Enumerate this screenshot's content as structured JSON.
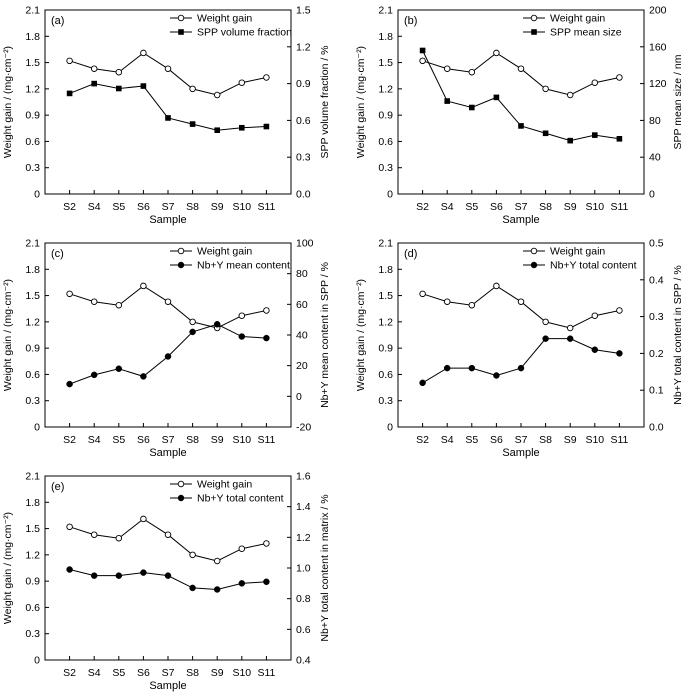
{
  "chart_data": [
    {
      "type": "line",
      "panel_label": "(a)",
      "xlabel": "Sample",
      "ylabel": "Weight gain / (mg·cm⁻²)",
      "ylabel_right": "SPP volume fraction / %",
      "categories": [
        "S2",
        "S4",
        "S5",
        "S6",
        "S7",
        "S8",
        "S9",
        "S10",
        "S11"
      ],
      "ylim": [
        0,
        2.1
      ],
      "yticks": [
        "0",
        "0.3",
        "0.6",
        "0.9",
        "1.2",
        "1.5",
        "1.8",
        "2.1"
      ],
      "ylim_right": [
        0,
        1.5
      ],
      "yticks_right": [
        "0.0",
        "0.3",
        "0.6",
        "0.9",
        "1.2",
        "1.5"
      ],
      "legend_position": "top-right",
      "series": [
        {
          "name": "Weight gain",
          "axis": "left",
          "marker": "open-circle",
          "values": [
            1.52,
            1.43,
            1.39,
            1.61,
            1.43,
            1.2,
            1.13,
            1.27,
            1.33
          ]
        },
        {
          "name": "SPP volume fraction",
          "axis": "right",
          "marker": "filled-square",
          "values": [
            0.82,
            0.9,
            0.86,
            0.88,
            0.62,
            0.57,
            0.52,
            0.54,
            0.55
          ]
        }
      ]
    },
    {
      "type": "line",
      "panel_label": "(b)",
      "xlabel": "Sample",
      "ylabel": "Weight gain / (mg·cm⁻²)",
      "ylabel_right": "SPP mean size / nm",
      "categories": [
        "S2",
        "S4",
        "S5",
        "S6",
        "S7",
        "S8",
        "S9",
        "S10",
        "S11"
      ],
      "ylim": [
        0,
        2.1
      ],
      "yticks": [
        "0",
        "0.3",
        "0.6",
        "0.9",
        "1.2",
        "1.5",
        "1.8",
        "2.1"
      ],
      "ylim_right": [
        0,
        200
      ],
      "yticks_right": [
        "0",
        "40",
        "80",
        "120",
        "160",
        "200"
      ],
      "legend_position": "top-right",
      "series": [
        {
          "name": "Weight gain",
          "axis": "left",
          "marker": "open-circle",
          "values": [
            1.52,
            1.43,
            1.39,
            1.61,
            1.43,
            1.2,
            1.13,
            1.27,
            1.33
          ]
        },
        {
          "name": "SPP mean size",
          "axis": "right",
          "marker": "filled-square",
          "values": [
            156,
            101,
            94,
            105,
            74,
            66,
            58,
            64,
            60
          ]
        }
      ]
    },
    {
      "type": "line",
      "panel_label": "(c)",
      "xlabel": "Sample",
      "ylabel": "Weight gain / (mg·cm⁻²)",
      "ylabel_right": "Nb+Y mean content in SPP / %",
      "categories": [
        "S2",
        "S4",
        "S5",
        "S6",
        "S7",
        "S8",
        "S9",
        "S10",
        "S11"
      ],
      "ylim": [
        0,
        2.1
      ],
      "yticks": [
        "0",
        "0.3",
        "0.6",
        "0.9",
        "1.2",
        "1.5",
        "1.8",
        "2.1"
      ],
      "ylim_right": [
        -20,
        100
      ],
      "yticks_right": [
        "-20",
        "0",
        "20",
        "40",
        "60",
        "80",
        "100"
      ],
      "legend_position": "top-right",
      "series": [
        {
          "name": "Weight gain",
          "axis": "left",
          "marker": "open-circle",
          "values": [
            1.52,
            1.43,
            1.39,
            1.61,
            1.43,
            1.2,
            1.13,
            1.27,
            1.33
          ]
        },
        {
          "name": "Nb+Y mean content",
          "axis": "right",
          "marker": "filled-circle",
          "values": [
            8,
            14,
            18,
            13,
            26,
            42,
            47,
            39,
            38
          ]
        }
      ]
    },
    {
      "type": "line",
      "panel_label": "(d)",
      "xlabel": "Sample",
      "ylabel": "Weight gain / (mg·cm⁻²)",
      "ylabel_right": "Nb+Y total content in SPP / %",
      "categories": [
        "S2",
        "S4",
        "S5",
        "S6",
        "S7",
        "S8",
        "S9",
        "S10",
        "S11"
      ],
      "ylim": [
        0,
        2.1
      ],
      "yticks": [
        "0",
        "0.3",
        "0.6",
        "0.9",
        "1.2",
        "1.5",
        "1.8",
        "2.1"
      ],
      "ylim_right": [
        0,
        0.5
      ],
      "yticks_right": [
        "0.0",
        "0.1",
        "0.2",
        "0.3",
        "0.4",
        "0.5"
      ],
      "legend_position": "top-right",
      "series": [
        {
          "name": "Weight gain",
          "axis": "left",
          "marker": "open-circle",
          "values": [
            1.52,
            1.43,
            1.39,
            1.61,
            1.43,
            1.2,
            1.13,
            1.27,
            1.33
          ]
        },
        {
          "name": "Nb+Y total content",
          "axis": "right",
          "marker": "filled-circle",
          "values": [
            0.12,
            0.16,
            0.16,
            0.14,
            0.16,
            0.24,
            0.24,
            0.21,
            0.2
          ]
        }
      ]
    },
    {
      "type": "line",
      "panel_label": "(e)",
      "xlabel": "Sample",
      "ylabel": "Weight gain / (mg·cm⁻²)",
      "ylabel_right": "Nb+Y total  content in matrix / %",
      "categories": [
        "S2",
        "S4",
        "S5",
        "S6",
        "S7",
        "S8",
        "S9",
        "S10",
        "S11"
      ],
      "ylim": [
        0,
        2.1
      ],
      "yticks": [
        "0",
        "0.3",
        "0.6",
        "0.9",
        "1.2",
        "1.5",
        "1.8",
        "2.1"
      ],
      "ylim_right": [
        0.4,
        1.6
      ],
      "yticks_right": [
        "0.4",
        "0.6",
        "0.8",
        "1.0",
        "1.2",
        "1.4",
        "1.6"
      ],
      "legend_position": "top-right",
      "series": [
        {
          "name": "Weight gain",
          "axis": "left",
          "marker": "open-circle",
          "values": [
            1.52,
            1.43,
            1.39,
            1.61,
            1.43,
            1.2,
            1.13,
            1.27,
            1.33
          ]
        },
        {
          "name": "Nb+Y total content",
          "axis": "right",
          "marker": "filled-circle",
          "values": [
            0.99,
            0.95,
            0.95,
            0.97,
            0.95,
            0.87,
            0.86,
            0.9,
            0.91
          ]
        }
      ]
    }
  ]
}
